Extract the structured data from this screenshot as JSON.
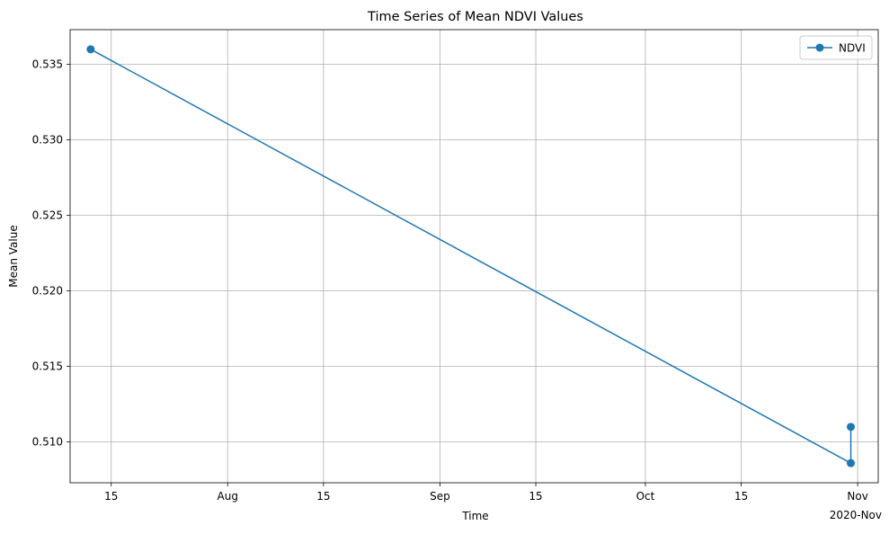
{
  "chart_data": {
    "type": "line",
    "title": "Time Series of Mean NDVI Values",
    "xlabel": "Time",
    "ylabel": "Mean Value",
    "x_axis_type": "date",
    "grid": true,
    "legend_position": "top-right",
    "ylim": [
      0.5073,
      0.5373
    ],
    "xlim": [
      "2020-07-09",
      "2020-11-04"
    ],
    "x_ticks": [
      {
        "date": "2020-07-15",
        "label": "15"
      },
      {
        "date": "2020-08-01",
        "label": "Aug"
      },
      {
        "date": "2020-08-15",
        "label": "15"
      },
      {
        "date": "2020-09-01",
        "label": "Sep"
      },
      {
        "date": "2020-09-15",
        "label": "15"
      },
      {
        "date": "2020-10-01",
        "label": "Oct"
      },
      {
        "date": "2020-10-15",
        "label": "15"
      },
      {
        "date": "2020-11-01",
        "label": "Nov"
      }
    ],
    "x_offset_label": "2020-Nov",
    "y_ticks": [
      0.51,
      0.515,
      0.52,
      0.525,
      0.53,
      0.535
    ],
    "y_tick_labels": [
      "0.510",
      "0.515",
      "0.520",
      "0.525",
      "0.530",
      "0.535"
    ],
    "series": [
      {
        "name": "NDVI",
        "color": "#1f77b4",
        "marker": "circle",
        "points": [
          {
            "x": "2020-07-12",
            "y": 0.536
          },
          {
            "x": "2020-10-31",
            "y": 0.5086
          },
          {
            "x": "2020-10-31",
            "y": 0.511
          }
        ]
      }
    ]
  }
}
